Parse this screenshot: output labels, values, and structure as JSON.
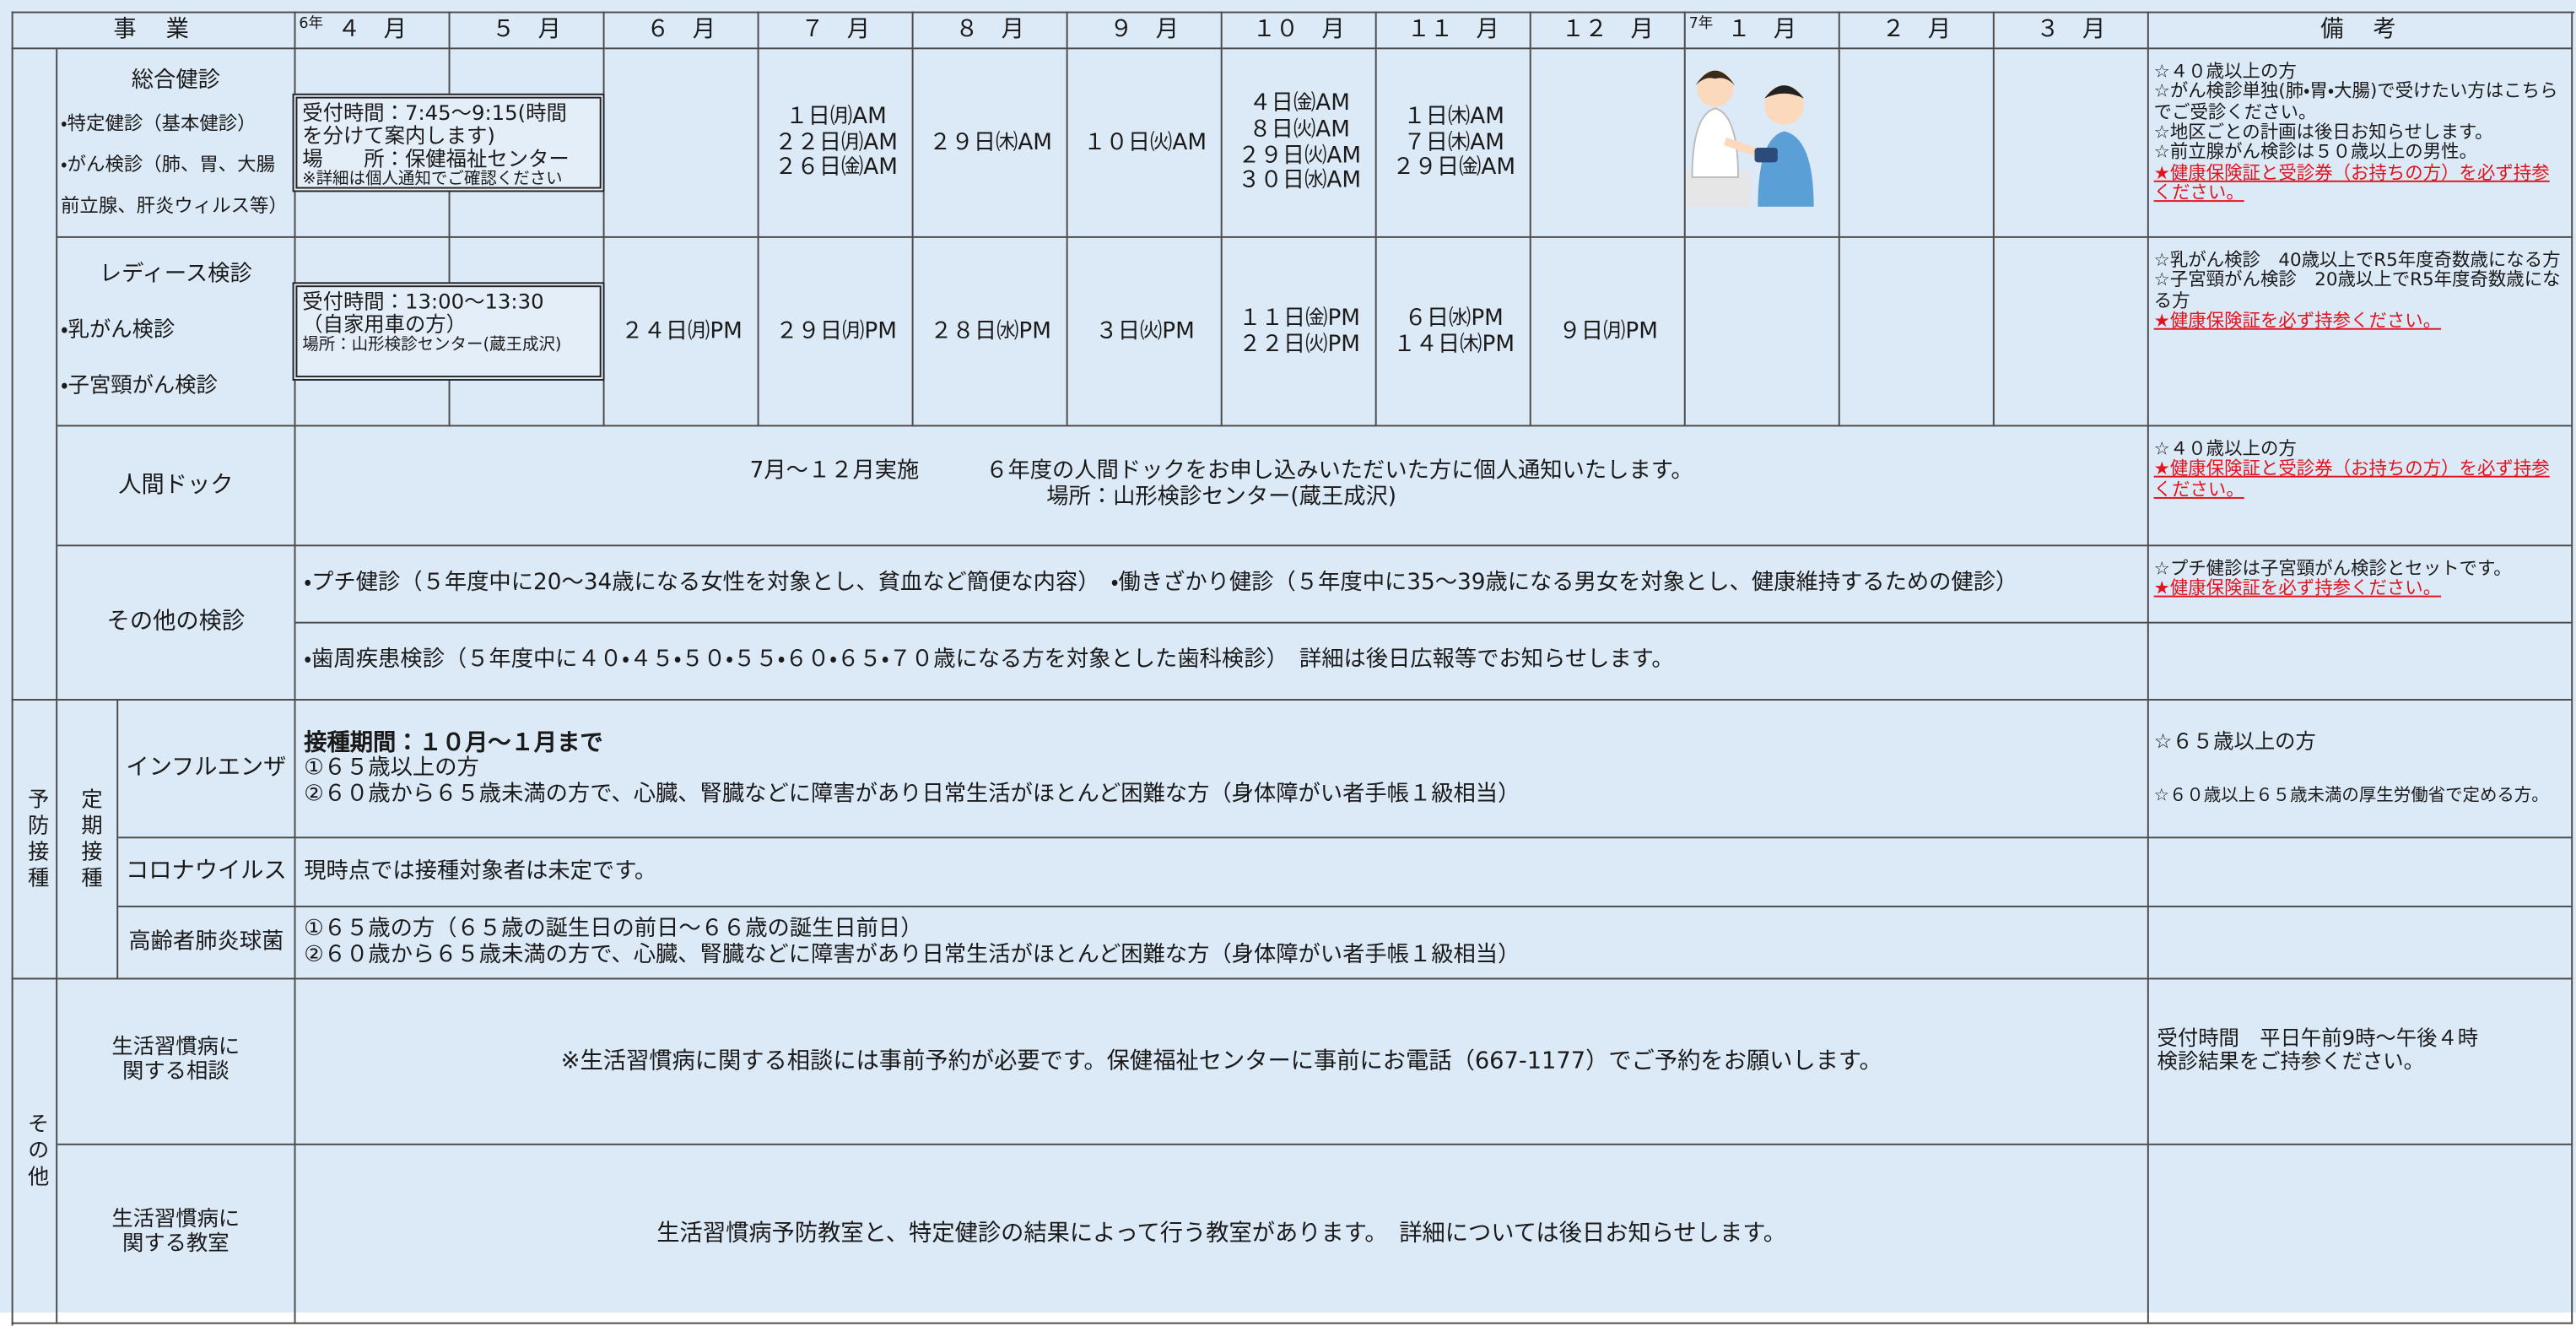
{
  "header": {
    "business": "事　業",
    "months": [
      "４　月",
      "５　月",
      "６　月",
      "７　月",
      "８　月",
      "９　月",
      "１０　月",
      "１１　月",
      "１２　月",
      "１　月",
      "２　月",
      "３　月"
    ],
    "year_r6": "6年",
    "year_r7": "7年",
    "remarks": "備　考"
  },
  "sougou": {
    "title": "総合健診",
    "items": [
      "・特定健診（基本健診）",
      "・がん検診（肺、胃、大腸",
      "前立腺、肝炎ウィルス等）"
    ],
    "reception": [
      "受付時間：7:45～9:15(時間",
      "を分けて案内します)",
      "場　　所：保健福祉センター",
      "※詳細は個人通知でご確認ください"
    ],
    "schedule": {
      "7": [
        "１日㈪AM",
        "２２日㈪AM",
        "２６日㈮AM"
      ],
      "8": [
        "２９日㈭AM"
      ],
      "9": [
        "１０日㈫AM"
      ],
      "10": [
        "４日㈮AM",
        "８日㈫AM",
        "２９日㈫AM",
        "３０日㈬AM"
      ],
      "11": [
        "１日㈭AM",
        "７日㈭AM",
        "２９日㈮AM"
      ]
    },
    "notes": [
      "☆４０歳以上の方",
      "☆がん検診単独(肺・胃・大腸)で受けたい方はこちらでご受診ください。",
      "☆地区ごとの計画は後日お知らせします。",
      "☆前立腺がん検診は５０歳以上の男性。"
    ],
    "warning": "★健康保険証と受診券（お持ちの方）を必ず持参ください。"
  },
  "ladies": {
    "title": "レディース検診",
    "items": [
      "・乳がん検診",
      "・子宮頸がん検診"
    ],
    "reception": [
      "受付時間：13:00～13:30",
      "（自家用車の方）",
      "場所：山形検診センター(蔵王成沢)"
    ],
    "schedule": {
      "6": [
        "２４日㈪PM"
      ],
      "7": [
        "２９日㈪PM"
      ],
      "8": [
        "２８日㈬PM"
      ],
      "9": [
        "３日㈫PM"
      ],
      "10": [
        "１１日㈮PM",
        "２２日㈫PM"
      ],
      "11": [
        "６日㈬PM",
        "１４日㈭PM"
      ],
      "12": [
        "９日㈪PM"
      ]
    },
    "notes": [
      "☆乳がん検診　40歳以上でR5年度奇数歳になる方",
      "☆子宮頸がん検診　20歳以上でR5年度奇数歳になる方"
    ],
    "warning": "★健康保険証を必ず持参ください。"
  },
  "dock": {
    "title": "人間ドック",
    "lines": [
      "7月～１２月実施　　　６年度の人間ドックをお申し込みいただいた方に個人通知いたします。",
      "場所：山形検診センター(蔵王成沢)"
    ],
    "notes": [
      "☆４０歳以上の方"
    ],
    "warning": "★健康保険証と受診券（お持ちの方）を必ず持参ください。"
  },
  "other_exams": {
    "title": "その他の検診",
    "lines": [
      "・プチ健診（５年度中に20～34歳になる女性を対象とし、貧血など簡便な内容）　・働きざかり健診（５年度中に35～39歳になる男女を対象とし、健康維持するための健診）",
      "・歯周疾患検診（５年度中に４０・４５・５０・５５・６０・６５・７０歳になる方を対象とした歯科検診）　詳細は後日広報等でお知らせします。"
    ],
    "notes": [
      "☆プチ健診は子宮頸がん検診とセットです。"
    ],
    "warning": "★健康保険証を必ず持参ください。"
  },
  "vaccination": {
    "group": "予防接種",
    "subgroup": "定期接種",
    "influenza": {
      "label": "インフルエンザ",
      "period": "接種期間：１０月～１月まで",
      "lines": [
        "①６５歳以上の方",
        "②６０歳から６５歳未満の方で、心臓、腎臓などに障害があり日常生活がほとんど困難な方（身体障がい者手帳１級相当）"
      ],
      "notes": [
        "☆６５歳以上の方",
        "☆６０歳以上６５歳未満の厚生労働省で定める方。"
      ]
    },
    "corona": {
      "label": "コロナウイルス",
      "text": "現時点では接種対象者は未定です。"
    },
    "pneumococcal": {
      "label": "高齢者肺炎球菌",
      "lines": [
        "①６５歳の方（６５歳の誕生日の前日～６６歳の誕生日前日）",
        "②６０歳から６５歳未満の方で、心臓、腎臓などに障害があり日常生活がほとんど困難な方（身体障がい者手帳１級相当）"
      ]
    }
  },
  "other": {
    "group": "その他",
    "consultation": {
      "label": [
        "生活習慣病に",
        "関する相談"
      ],
      "text": "※生活習慣病に関する相談には事前予約が必要です。保健福祉センターに事前にお電話（667-1177）でご予約をお願いします。",
      "notes": [
        "受付時間　平日午前9時～午後４時",
        "検診結果をご持参ください。"
      ]
    },
    "class": {
      "label": [
        "生活習慣病に",
        "関する教室"
      ],
      "text": "生活習慣病予防教室と、特定健診の結果によって行う教室があります。　詳細については後日お知らせします。"
    }
  }
}
